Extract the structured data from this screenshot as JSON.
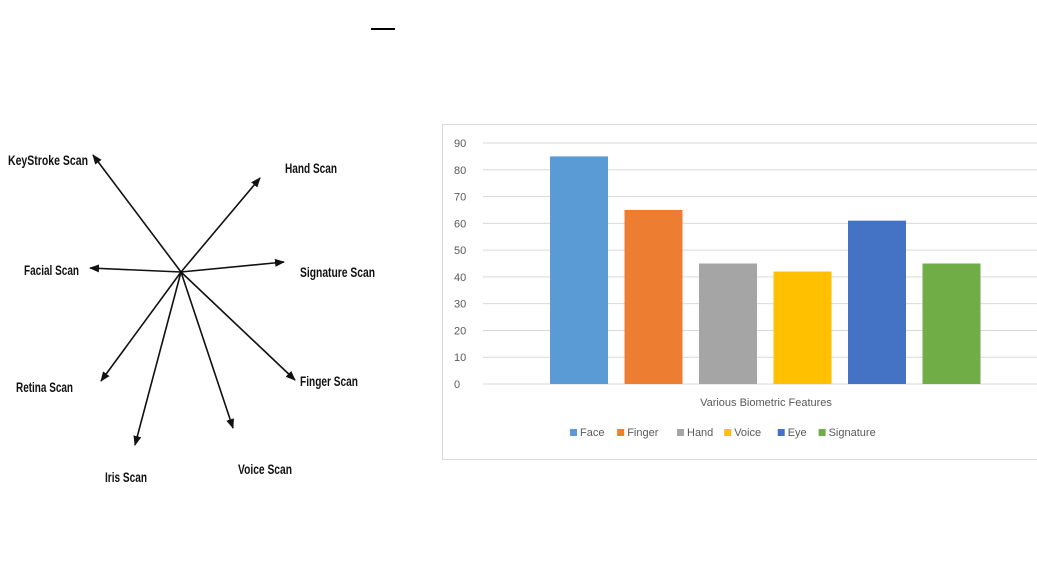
{
  "diagram": {
    "labels": {
      "keystroke": "KeyStroke Scan",
      "hand": "Hand Scan",
      "facial": "Facial Scan",
      "signature": "Signature Scan",
      "retina": "Retina Scan",
      "finger": "Finger Scan",
      "iris": "Iris Scan",
      "voice": "Voice Scan"
    }
  },
  "chart_data": {
    "type": "bar",
    "categories": [
      "Face",
      "Finger",
      "Hand",
      "Voice",
      "Eye",
      "Signature"
    ],
    "values": [
      85,
      65,
      45,
      42,
      61,
      45
    ],
    "colors": [
      "#5b9bd5",
      "#ed7d31",
      "#a5a5a5",
      "#ffc000",
      "#4472c4",
      "#70ad47"
    ],
    "xlabel": "Various Biometric Features",
    "ylabel": "",
    "ylim": [
      0,
      90
    ],
    "yticks": [
      0,
      10,
      20,
      30,
      40,
      50,
      60,
      70,
      80,
      90
    ],
    "grid": true,
    "legend": "bottom"
  }
}
